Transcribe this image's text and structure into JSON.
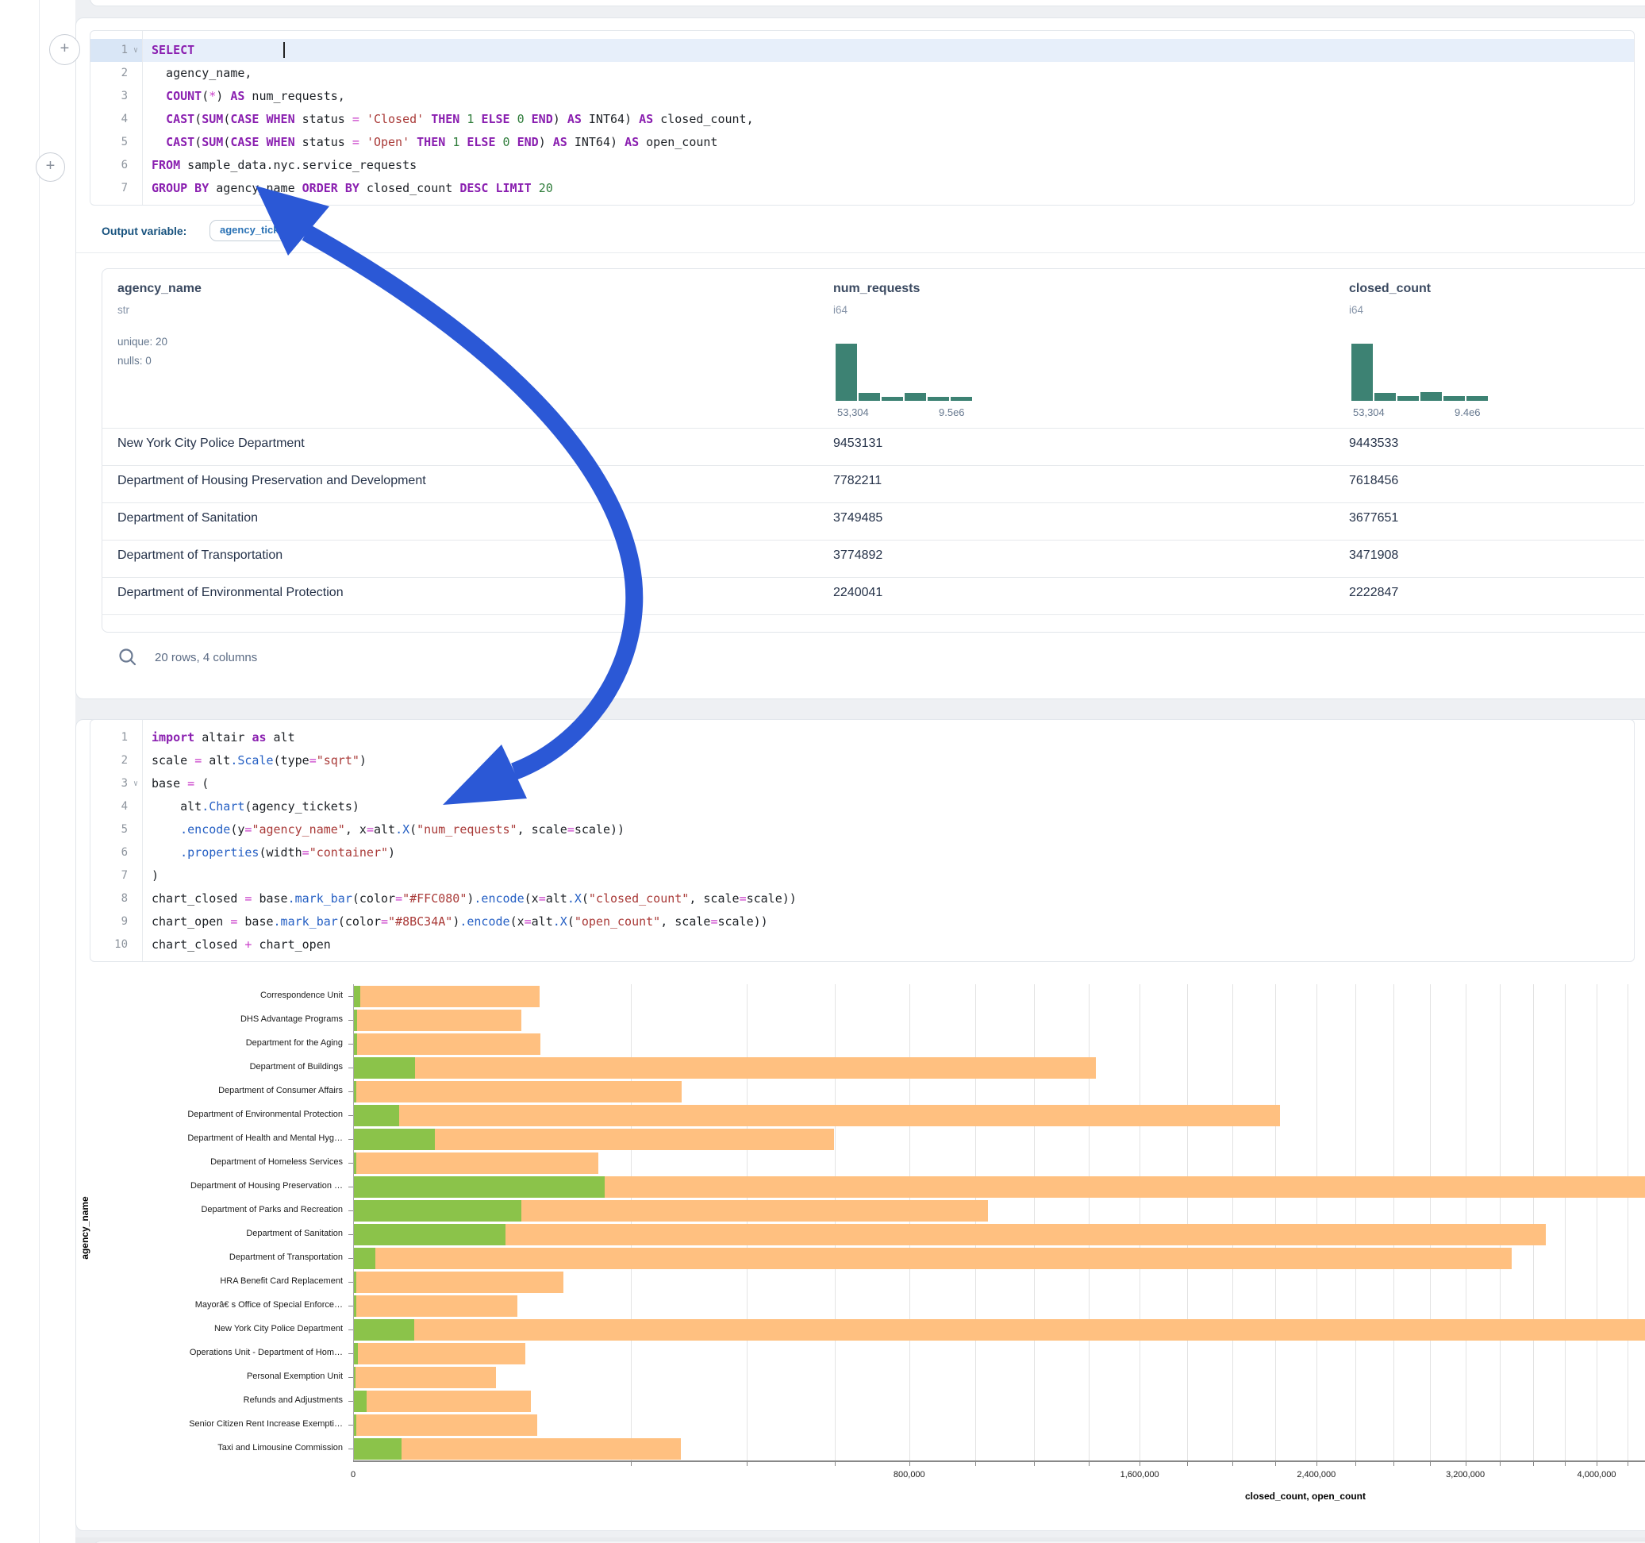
{
  "sql_cell": {
    "line_numbers": [
      1,
      2,
      3,
      4,
      5,
      6,
      7
    ],
    "active_line": 1,
    "fold_lines": [
      1
    ],
    "lines": [
      [
        [
          "k",
          "SELECT"
        ],
        [
          "t",
          " "
        ]
      ],
      [
        [
          "t",
          "  agency_name,"
        ]
      ],
      [
        [
          "t",
          "  "
        ],
        [
          "k",
          "COUNT"
        ],
        [
          "t",
          "("
        ],
        [
          "o",
          "*"
        ],
        [
          "t",
          ") "
        ],
        [
          "k",
          "AS"
        ],
        [
          "t",
          " num_requests,"
        ]
      ],
      [
        [
          "t",
          "  "
        ],
        [
          "k",
          "CAST"
        ],
        [
          "t",
          "("
        ],
        [
          "k",
          "SUM"
        ],
        [
          "t",
          "("
        ],
        [
          "k",
          "CASE"
        ],
        [
          "t",
          " "
        ],
        [
          "k",
          "WHEN"
        ],
        [
          "t",
          " status "
        ],
        [
          "o",
          "="
        ],
        [
          "t",
          " "
        ],
        [
          "s",
          "'Closed'"
        ],
        [
          "t",
          " "
        ],
        [
          "k",
          "THEN"
        ],
        [
          "t",
          " "
        ],
        [
          "n",
          "1"
        ],
        [
          "t",
          " "
        ],
        [
          "k",
          "ELSE"
        ],
        [
          "t",
          " "
        ],
        [
          "n",
          "0"
        ],
        [
          "t",
          " "
        ],
        [
          "k",
          "END"
        ],
        [
          "t",
          ") "
        ],
        [
          "k",
          "AS"
        ],
        [
          "t",
          " INT64) "
        ],
        [
          "k",
          "AS"
        ],
        [
          "t",
          " closed_count,"
        ]
      ],
      [
        [
          "t",
          "  "
        ],
        [
          "k",
          "CAST"
        ],
        [
          "t",
          "("
        ],
        [
          "k",
          "SUM"
        ],
        [
          "t",
          "("
        ],
        [
          "k",
          "CASE"
        ],
        [
          "t",
          " "
        ],
        [
          "k",
          "WHEN"
        ],
        [
          "t",
          " status "
        ],
        [
          "o",
          "="
        ],
        [
          "t",
          " "
        ],
        [
          "s",
          "'Open'"
        ],
        [
          "t",
          " "
        ],
        [
          "k",
          "THEN"
        ],
        [
          "t",
          " "
        ],
        [
          "n",
          "1"
        ],
        [
          "t",
          " "
        ],
        [
          "k",
          "ELSE"
        ],
        [
          "t",
          " "
        ],
        [
          "n",
          "0"
        ],
        [
          "t",
          " "
        ],
        [
          "k",
          "END"
        ],
        [
          "t",
          ") "
        ],
        [
          "k",
          "AS"
        ],
        [
          "t",
          " INT64) "
        ],
        [
          "k",
          "AS"
        ],
        [
          "t",
          " open_count"
        ]
      ],
      [
        [
          "k",
          "FROM"
        ],
        [
          "t",
          " sample_data.nyc.service_requests"
        ]
      ],
      [
        [
          "k",
          "GROUP BY"
        ],
        [
          "t",
          " agency_name "
        ],
        [
          "k",
          "ORDER BY"
        ],
        [
          "t",
          " closed_count "
        ],
        [
          "k",
          "DESC"
        ],
        [
          "t",
          " "
        ],
        [
          "k",
          "LIMIT"
        ],
        [
          "t",
          " "
        ],
        [
          "n",
          "20"
        ]
      ]
    ],
    "output_label": "Output variable:",
    "output_variable": "agency_tickets"
  },
  "table": {
    "columns": [
      {
        "name": "agency_name",
        "type": "str",
        "stats": [
          "unique: 20",
          "nulls: 0"
        ]
      },
      {
        "name": "num_requests",
        "type": "i64",
        "hist": [
          1,
          0.14,
          0.07,
          0.14,
          0.075,
          0.07
        ],
        "hist_min": "53,304",
        "hist_max": "9.5e6"
      },
      {
        "name": "closed_count",
        "type": "i64",
        "hist": [
          1,
          0.14,
          0.08,
          0.15,
          0.08,
          0.08
        ],
        "hist_min": "53,304",
        "hist_max": "9.4e6"
      }
    ],
    "rows": [
      [
        "New York City Police Department",
        "9453131",
        "9443533"
      ],
      [
        "Department of Housing Preservation and Development",
        "7782211",
        "7618456"
      ],
      [
        "Department of Sanitation",
        "3749485",
        "3677651"
      ],
      [
        "Department of Transportation",
        "3774892",
        "3471908"
      ],
      [
        "Department of Environmental Protection",
        "2240041",
        "2222847"
      ]
    ],
    "footer": "20 rows, 4 columns"
  },
  "python_cell": {
    "line_numbers": [
      1,
      2,
      3,
      4,
      5,
      6,
      7,
      8,
      9,
      10
    ],
    "fold_lines": [
      3
    ],
    "lines": [
      [
        [
          "k",
          "import"
        ],
        [
          "t",
          " altair "
        ],
        [
          "k",
          "as"
        ],
        [
          "t",
          " alt"
        ]
      ],
      [
        [
          "t",
          "scale "
        ],
        [
          "o",
          "="
        ],
        [
          "t",
          " alt"
        ],
        [
          "f",
          ".Scale"
        ],
        [
          "t",
          "(type"
        ],
        [
          "o",
          "="
        ],
        [
          "s",
          "\"sqrt\""
        ],
        [
          "t",
          ")"
        ]
      ],
      [
        [
          "t",
          "base "
        ],
        [
          "o",
          "="
        ],
        [
          "t",
          " ("
        ]
      ],
      [
        [
          "t",
          "    alt"
        ],
        [
          "f",
          ".Chart"
        ],
        [
          "t",
          "(agency_tickets)"
        ]
      ],
      [
        [
          "t",
          "    "
        ],
        [
          "f",
          ".encode"
        ],
        [
          "t",
          "(y"
        ],
        [
          "o",
          "="
        ],
        [
          "s",
          "\"agency_name\""
        ],
        [
          "t",
          ", x"
        ],
        [
          "o",
          "="
        ],
        [
          "t",
          "alt"
        ],
        [
          "f",
          ".X"
        ],
        [
          "t",
          "("
        ],
        [
          "s",
          "\"num_requests\""
        ],
        [
          "t",
          ", scale"
        ],
        [
          "o",
          "="
        ],
        [
          "t",
          "scale))"
        ]
      ],
      [
        [
          "t",
          "    "
        ],
        [
          "f",
          ".properties"
        ],
        [
          "t",
          "(width"
        ],
        [
          "o",
          "="
        ],
        [
          "s",
          "\"container\""
        ],
        [
          "t",
          ")"
        ]
      ],
      [
        [
          "t",
          ")"
        ]
      ],
      [
        [
          "t",
          "chart_closed "
        ],
        [
          "o",
          "="
        ],
        [
          "t",
          " base"
        ],
        [
          "f",
          ".mark_bar"
        ],
        [
          "t",
          "(color"
        ],
        [
          "o",
          "="
        ],
        [
          "s",
          "\"#FFC080\""
        ],
        [
          "t",
          ")"
        ],
        [
          "f",
          ".encode"
        ],
        [
          "t",
          "(x"
        ],
        [
          "o",
          "="
        ],
        [
          "t",
          "alt"
        ],
        [
          "f",
          ".X"
        ],
        [
          "t",
          "("
        ],
        [
          "s",
          "\"closed_count\""
        ],
        [
          "t",
          ", scale"
        ],
        [
          "o",
          "="
        ],
        [
          "t",
          "scale))"
        ]
      ],
      [
        [
          "t",
          "chart_open "
        ],
        [
          "o",
          "="
        ],
        [
          "t",
          " base"
        ],
        [
          "f",
          ".mark_bar"
        ],
        [
          "t",
          "(color"
        ],
        [
          "o",
          "="
        ],
        [
          "s",
          "\"#8BC34A\""
        ],
        [
          "t",
          ")"
        ],
        [
          "f",
          ".encode"
        ],
        [
          "t",
          "(x"
        ],
        [
          "o",
          "="
        ],
        [
          "t",
          "alt"
        ],
        [
          "f",
          ".X"
        ],
        [
          "t",
          "("
        ],
        [
          "s",
          "\"open_count\""
        ],
        [
          "t",
          ", scale"
        ],
        [
          "o",
          "="
        ],
        [
          "t",
          "scale))"
        ]
      ],
      [
        [
          "t",
          "chart_closed "
        ],
        [
          "o",
          "+"
        ],
        [
          "t",
          " chart_open"
        ]
      ]
    ]
  },
  "chart_data": {
    "type": "bar",
    "orientation": "horizontal",
    "x_scale": "sqrt",
    "categories": [
      "Correspondence Unit",
      "DHS Advantage Programs",
      "Department for the Aging",
      "Department of Buildings",
      "Department of Consumer Affairs",
      "Department of Environmental Protection",
      "Department of Health and Mental Hyg…",
      "Department of Homeless Services",
      "Department of Housing Preservation …",
      "Department of Parks and Recreation",
      "Department of Sanitation",
      "Department of Transportation",
      "HRA Benefit Card Replacement",
      "Mayorâ€ s Office of Special Enforce…",
      "New York City Police Department",
      "Operations Unit - Department of Hom…",
      "Personal Exemption Unit",
      "Refunds and Adjustments",
      "Senior Citizen Rent Increase Exempti…",
      "Taxi and Limousine Commission"
    ],
    "series": [
      {
        "name": "closed_count",
        "color": "#FFC080",
        "values": [
          90000,
          73000,
          91000,
          1427000,
          279000,
          2222847,
          599000,
          155000,
          7618456,
          1043000,
          3677651,
          3471908,
          114000,
          70000,
          9443533,
          77000,
          53000,
          82000,
          88000,
          278000
        ]
      },
      {
        "name": "open_count",
        "color": "#8BC34A",
        "values": [
          120,
          40,
          45,
          10000,
          25,
          5400,
          17200,
          30,
          163755,
          73000,
          60000,
          1300,
          25,
          20,
          9598,
          60,
          15,
          450,
          20,
          6100
        ]
      }
    ],
    "xlabel": "closed_count, open_count",
    "ylabel": "agency_name",
    "x_ticks": [
      0,
      800000,
      1600000,
      2400000,
      3200000,
      4000000
    ],
    "x_tick_labels": [
      "0",
      "800,000",
      "1,600,000",
      "2,400,000",
      "3,200,000",
      "4,000,000"
    ],
    "grid_step": 200000,
    "grid": true,
    "legend": "none"
  },
  "icons": {
    "plus": "+",
    "chevron_down": "∨",
    "search": "search"
  },
  "colors": {
    "closed_bar": "#FFC080",
    "open_bar": "#8BC34A",
    "histogram": "#3d8273",
    "arrow": "#2b58d6"
  }
}
